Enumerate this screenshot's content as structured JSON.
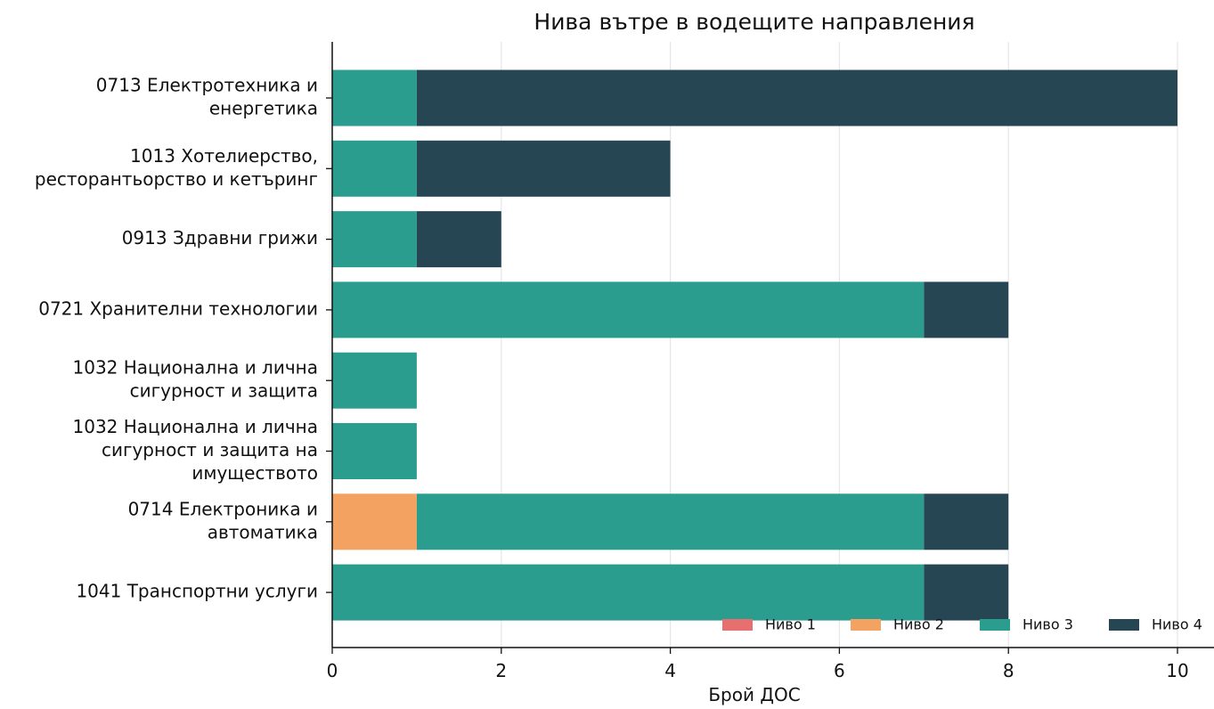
{
  "chart_data": {
    "type": "bar",
    "orientation": "horizontal",
    "stacked": true,
    "title": "Нива вътре в водещите направления",
    "xlabel": "Брой ДОС",
    "ylabel": "",
    "xlim": [
      0,
      10.42
    ],
    "xticks": [
      0,
      2,
      4,
      6,
      8,
      10
    ],
    "grid": "x",
    "legend_position": "bottom-right",
    "categories": [
      [
        "0713 Електротехника и",
        "енергетика"
      ],
      [
        "1013 Хотелиерство,",
        "ресторантьорство и кетъринг"
      ],
      [
        "0913 Здравни грижи"
      ],
      [
        "0721 Хранителни технологии"
      ],
      [
        "1032 Национална и лична",
        "сигурност и защита"
      ],
      [
        "1032 Национална и лична",
        "сигурност и защита на",
        "имуществото"
      ],
      [
        "0714 Електроника и",
        "автоматика"
      ],
      [
        "1041 Транспортни услуги"
      ]
    ],
    "series": [
      {
        "name": "Ниво 1",
        "color": "#e76f6f",
        "values": [
          0,
          0,
          0,
          0,
          0,
          0,
          0,
          0
        ]
      },
      {
        "name": "Ниво 2",
        "color": "#f4a261",
        "values": [
          0,
          0,
          0,
          0,
          0,
          0,
          1,
          0
        ]
      },
      {
        "name": "Ниво 3",
        "color": "#2a9d8f",
        "values": [
          1,
          1,
          1,
          7,
          1,
          1,
          6,
          7
        ]
      },
      {
        "name": "Ниво 4",
        "color": "#264653",
        "values": [
          9,
          3,
          1,
          1,
          0,
          0,
          1,
          1
        ]
      }
    ]
  }
}
